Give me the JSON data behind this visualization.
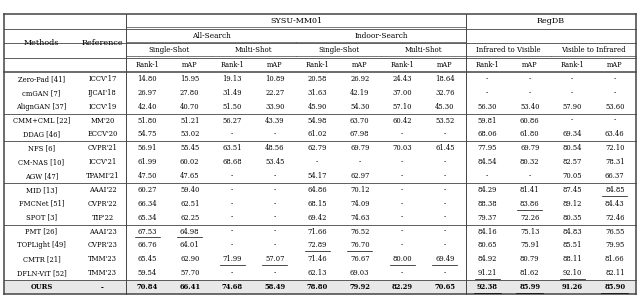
{
  "rows": [
    [
      "Zero-Pad [41]",
      "ICCV'17",
      "14.80",
      "15.95",
      "19.13",
      "10.89",
      "20.58",
      "26.92",
      "24.43",
      "18.64",
      "-",
      "-",
      "-",
      "-"
    ],
    [
      "cmGAN [7]",
      "IJCAI'18",
      "26.97",
      "27.80",
      "31.49",
      "22.27",
      "31.63",
      "42.19",
      "37.00",
      "32.76",
      "-",
      "-",
      "-",
      "-"
    ],
    [
      "AlignGAN [37]",
      "ICCV'19",
      "42.40",
      "40.70",
      "51.50",
      "33.90",
      "45.90",
      "54.30",
      "57.10",
      "45.30",
      "56.30",
      "53.40",
      "57.90",
      "53.60"
    ],
    [
      "CMM+CML [22]",
      "MM'20",
      "51.80",
      "51.21",
      "56.27",
      "43.39",
      "54.98",
      "63.70",
      "60.42",
      "53.52",
      "59.81",
      "60.86",
      "-",
      "-"
    ],
    [
      "DDAG [46]",
      "ECCV'20",
      "54.75",
      "53.02",
      "-",
      "-",
      "61.02",
      "67.98",
      "-",
      "-",
      "68.06",
      "61.80",
      "69.34",
      "63.46"
    ],
    [
      "NFS [6]",
      "CVPR'21",
      "56.91",
      "55.45",
      "63.51",
      "48.56",
      "62.79",
      "69.79",
      "70.03",
      "61.45",
      "77.95",
      "69.79",
      "80.54",
      "72.10"
    ],
    [
      "CM-NAS [10]",
      "ICCV'21",
      "61.99",
      "60.02",
      "68.68",
      "53.45",
      "-",
      "-",
      "-",
      "-",
      "84.54",
      "80.32",
      "82.57",
      "78.31"
    ],
    [
      "AGW [47]",
      "TPAMI'21",
      "47.50",
      "47.65",
      "-",
      "-",
      "54.17",
      "62.97",
      "-",
      "-",
      "-",
      "-",
      "70.05",
      "66.37"
    ],
    [
      "MID [13]",
      "AAAI'22",
      "60.27",
      "59.40",
      "-",
      "-",
      "64.86",
      "70.12",
      "-",
      "-",
      "84.29",
      "81.41",
      "87.45",
      "84.85"
    ],
    [
      "FMCNet [51]",
      "CVPR'22",
      "66.34",
      "62.51",
      "-",
      "-",
      "68.15",
      "74.09",
      "-",
      "-",
      "88.38",
      "83.86",
      "89.12",
      "84.43"
    ],
    [
      "SPOT [3]",
      "TIP'22",
      "65.34",
      "62.25",
      "-",
      "-",
      "69.42",
      "74.63",
      "-",
      "-",
      "79.37",
      "72.26",
      "80.35",
      "72.46"
    ],
    [
      "PMT [26]",
      "AAAI'23",
      "67.53",
      "64.98",
      "-",
      "-",
      "71.66",
      "76.52",
      "-",
      "-",
      "84.16",
      "75.13",
      "84.83",
      "76.55"
    ],
    [
      "TOPLight [49]",
      "CVPR'23",
      "66.76",
      "64.01",
      "-",
      "-",
      "72.89",
      "76.70",
      "-",
      "-",
      "80.65",
      "75.91",
      "85.51",
      "79.95"
    ],
    [
      "CMTR [21]",
      "TMM'23",
      "65.45",
      "62.90",
      "71.99",
      "57.07",
      "71.46",
      "76.67",
      "80.00",
      "69.49",
      "84.92",
      "80.79",
      "88.11",
      "81.66"
    ],
    [
      "DFLN-ViT [52]",
      "TMM'23",
      "59.54",
      "57.70",
      "-",
      "-",
      "62.13",
      "69.03",
      "-",
      "-",
      "91.21",
      "81.62",
      "92.10",
      "82.11"
    ],
    [
      "OURS",
      "-",
      "70.84",
      "66.41",
      "74.68",
      "58.49",
      "78.80",
      "79.92",
      "82.29",
      "70.65",
      "92.38",
      "85.99",
      "91.26",
      "85.90"
    ]
  ],
  "underline_cells": [
    [
      8,
      13
    ],
    [
      9,
      11
    ],
    [
      11,
      2
    ],
    [
      11,
      3
    ],
    [
      12,
      6
    ],
    [
      12,
      7
    ],
    [
      13,
      4
    ],
    [
      13,
      5
    ],
    [
      13,
      8
    ],
    [
      13,
      9
    ],
    [
      14,
      10
    ],
    [
      14,
      12
    ],
    [
      15,
      10
    ],
    [
      15,
      11
    ],
    [
      15,
      13
    ]
  ],
  "group_lines_after": [
    2,
    4,
    7,
    10,
    14
  ],
  "bold_last": true,
  "bg_color": "#f0f0f0",
  "line_color": "#444444",
  "text_color": "#000000",
  "fs_title": 5.8,
  "fs_header": 5.3,
  "fs_data": 4.9
}
